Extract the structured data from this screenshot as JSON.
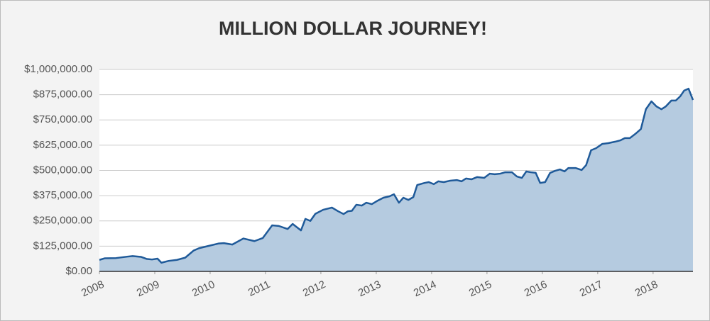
{
  "chart_data": {
    "type": "area",
    "title": "MILLION DOLLAR JOURNEY!",
    "x": [
      2008.0,
      2008.1,
      2008.3,
      2008.5,
      2008.6,
      2008.75,
      2008.85,
      2008.95,
      2009.05,
      2009.12,
      2009.25,
      2009.4,
      2009.55,
      2009.7,
      2009.8,
      2010.0,
      2010.15,
      2010.25,
      2010.4,
      2010.6,
      2010.8,
      2010.95,
      2011.12,
      2011.24,
      2011.4,
      2011.49,
      2011.64,
      2011.72,
      2011.81,
      2011.9,
      2012.04,
      2012.2,
      2012.31,
      2012.41,
      2012.49,
      2012.56,
      2012.64,
      2012.74,
      2012.82,
      2012.92,
      2013.03,
      2013.13,
      2013.24,
      2013.32,
      2013.41,
      2013.49,
      2013.58,
      2013.67,
      2013.74,
      2013.87,
      2013.95,
      2014.04,
      2014.12,
      2014.22,
      2014.33,
      2014.46,
      2014.54,
      2014.62,
      2014.72,
      2014.82,
      2014.95,
      2015.05,
      2015.14,
      2015.24,
      2015.33,
      2015.45,
      2015.54,
      2015.63,
      2015.71,
      2015.79,
      2015.88,
      2015.96,
      2016.05,
      2016.14,
      2016.23,
      2016.32,
      2016.4,
      2016.47,
      2016.6,
      2016.71,
      2016.79,
      2016.88,
      2016.97,
      2017.08,
      2017.19,
      2017.31,
      2017.41,
      2017.49,
      2017.58,
      2017.68,
      2017.78,
      2017.87,
      2017.97,
      2018.06,
      2018.15,
      2018.23,
      2018.33,
      2018.41,
      2018.49,
      2018.56,
      2018.64,
      2018.72
    ],
    "values": [
      57000,
      65000,
      66000,
      73000,
      76000,
      72000,
      62000,
      59000,
      63000,
      43000,
      52000,
      57000,
      68000,
      103000,
      115000,
      128000,
      138000,
      140000,
      133000,
      163000,
      150000,
      165000,
      228000,
      225000,
      210000,
      235000,
      203000,
      260000,
      250000,
      285000,
      305000,
      316000,
      298000,
      284000,
      298000,
      300000,
      330000,
      326000,
      340000,
      333000,
      351000,
      365000,
      372000,
      382000,
      340000,
      365000,
      354000,
      368000,
      428000,
      438000,
      442000,
      432000,
      446000,
      442000,
      449000,
      452000,
      446000,
      460000,
      456000,
      467000,
      463000,
      484000,
      481000,
      484000,
      491000,
      491000,
      470000,
      463000,
      495000,
      491000,
      488000,
      438000,
      442000,
      488000,
      498000,
      505000,
      495000,
      512000,
      512000,
      502000,
      526000,
      600000,
      610000,
      631000,
      635000,
      642000,
      649000,
      660000,
      660000,
      681000,
      705000,
      803000,
      842000,
      817000,
      803000,
      817000,
      846000,
      846000,
      867000,
      895000,
      905000,
      849000
    ],
    "color": "#1f5a99",
    "fill": "#b5cbe0",
    "xlim": [
      2008,
      2018.72
    ],
    "xticks": [
      2008,
      2009,
      2010,
      2011,
      2012,
      2013,
      2014,
      2015,
      2016,
      2017,
      2018
    ],
    "ylim": [
      0,
      1000000
    ],
    "yticks": [
      {
        "value": 0,
        "label": "$0.00"
      },
      {
        "value": 125000,
        "label": "$125,000.00"
      },
      {
        "value": 250000,
        "label": "$250,000.00"
      },
      {
        "value": 375000,
        "label": "$375,000.00"
      },
      {
        "value": 500000,
        "label": "$500,000.00"
      },
      {
        "value": 625000,
        "label": "$625,000.00"
      },
      {
        "value": 750000,
        "label": "$750,000.00"
      },
      {
        "value": 875000,
        "label": "$875,000.00"
      },
      {
        "value": 1000000,
        "label": "$1,000,000.00"
      }
    ],
    "grid": true
  }
}
